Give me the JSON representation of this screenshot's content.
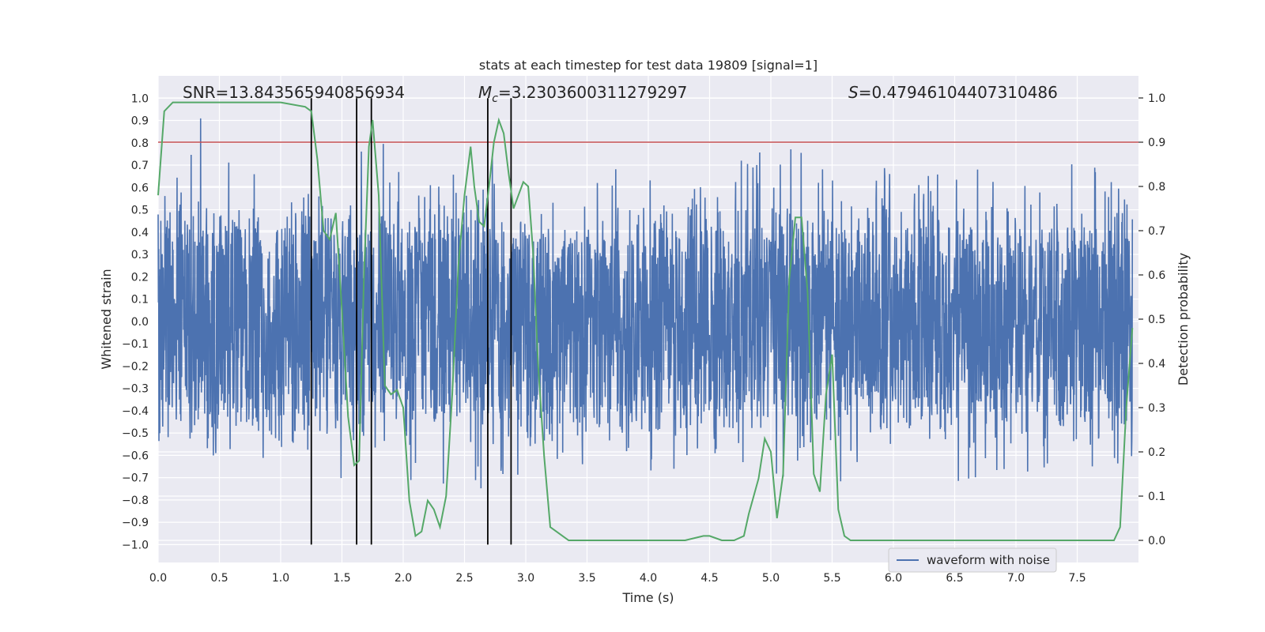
{
  "chart_data": {
    "type": "line",
    "title": "stats at each timestep for test data 19809 [signal=1]",
    "xlabel": "Time (s)",
    "ylabel": "Whitened strain",
    "y2label": "Detection probability",
    "xlim": [
      0.0,
      8.0
    ],
    "ylim": [
      -1.08,
      1.1
    ],
    "y2lim": [
      -0.05,
      1.05
    ],
    "xticks": [
      0.0,
      0.5,
      1.0,
      1.5,
      2.0,
      2.5,
      3.0,
      3.5,
      4.0,
      4.5,
      5.0,
      5.5,
      6.0,
      6.5,
      7.0,
      7.5
    ],
    "xtick_labels": [
      "0.0",
      "0.5",
      "1.0",
      "1.5",
      "2.0",
      "2.5",
      "3.0",
      "3.5",
      "4.0",
      "4.5",
      "5.0",
      "5.5",
      "6.0",
      "6.5",
      "7.0",
      "7.5"
    ],
    "yticks": [
      1.0,
      0.9,
      0.8,
      0.7,
      0.6,
      0.5,
      0.4,
      0.3,
      0.2,
      0.1,
      0.0,
      -0.1,
      -0.2,
      -0.3,
      -0.4,
      -0.5,
      -0.6,
      -0.7,
      -0.8,
      -0.9,
      -1.0
    ],
    "ytick_labels": [
      "1.0",
      "0.9",
      "0.8",
      "0.7",
      "0.6",
      "0.5",
      "0.4",
      "0.3",
      "0.2",
      "0.1",
      "0.0",
      "−0.1",
      "−0.2",
      "−0.3",
      "−0.4",
      "−0.5",
      "−0.6",
      "−0.7",
      "−0.8",
      "−0.9",
      "−1.0"
    ],
    "y2ticks": [
      1.0,
      0.9,
      0.8,
      0.7,
      0.6,
      0.5,
      0.4,
      0.3,
      0.2,
      0.1,
      0.0
    ],
    "y2tick_labels": [
      "1.0",
      "0.9",
      "0.8",
      "0.7",
      "0.6",
      "0.5",
      "0.4",
      "0.3",
      "0.2",
      "0.1",
      "0.0"
    ],
    "grid": true,
    "legend": {
      "placement": "lower-right",
      "entries": [
        "waveform with noise"
      ]
    },
    "annotations": {
      "snr": "SNR=13.843565940856934",
      "mc_symbol": "M",
      "mc_sub": "c",
      "mc_value": "=3.2303600311279297",
      "s_symbol": "S",
      "s_value": "=0.47946104407310486"
    },
    "threshold_y2": 0.9,
    "vlines_x": [
      1.25,
      1.62,
      1.74,
      2.69,
      2.88
    ],
    "waveform_envelope": {
      "description_free": true,
      "x": [
        0.0,
        0.25,
        0.5,
        0.75,
        1.0,
        1.25,
        1.5,
        1.75,
        2.0,
        2.25,
        2.5,
        2.75,
        3.0,
        3.25,
        3.5,
        3.75,
        4.0,
        4.25,
        4.5,
        4.75,
        5.0,
        5.25,
        5.5,
        5.75,
        6.0,
        6.25,
        6.5,
        6.75,
        7.0,
        7.25,
        7.5,
        7.75,
        7.95
      ],
      "max": [
        0.55,
        0.87,
        1.0,
        0.78,
        0.72,
        0.62,
        0.48,
        0.98,
        0.65,
        0.62,
        0.72,
        0.8,
        0.72,
        0.55,
        0.62,
        0.7,
        0.78,
        0.66,
        0.7,
        0.72,
        0.82,
        0.78,
        0.75,
        0.66,
        0.7,
        0.72,
        0.74,
        0.68,
        0.7,
        0.64,
        0.78,
        0.66,
        0.6
      ],
      "min": [
        -0.55,
        -0.6,
        -0.62,
        -0.65,
        -0.6,
        -0.78,
        -0.72,
        -0.7,
        -0.75,
        -0.68,
        -0.86,
        -0.68,
        -0.72,
        -0.62,
        -0.65,
        -0.7,
        -0.68,
        -0.66,
        -0.6,
        -0.82,
        -0.78,
        -0.62,
        -0.85,
        -0.7,
        -0.66,
        -0.72,
        -0.88,
        -0.7,
        -0.74,
        -0.9,
        -0.66,
        -0.7,
        -0.62
      ]
    },
    "series": [
      {
        "name": "waveform with noise",
        "color": "#4c72b0",
        "axis": "left"
      },
      {
        "color": "#55a868",
        "axis": "right",
        "x": [
          0.0,
          0.05,
          0.12,
          0.2,
          0.5,
          0.8,
          1.0,
          1.2,
          1.25,
          1.3,
          1.35,
          1.4,
          1.45,
          1.5,
          1.55,
          1.6,
          1.64,
          1.68,
          1.72,
          1.75,
          1.8,
          1.85,
          1.9,
          1.95,
          2.0,
          2.05,
          2.1,
          2.15,
          2.2,
          2.25,
          2.3,
          2.35,
          2.4,
          2.45,
          2.5,
          2.55,
          2.58,
          2.62,
          2.66,
          2.7,
          2.74,
          2.78,
          2.82,
          2.86,
          2.9,
          2.94,
          2.98,
          3.02,
          3.06,
          3.1,
          3.15,
          3.2,
          3.25,
          3.3,
          3.35,
          3.4,
          3.5,
          3.7,
          4.0,
          4.3,
          4.45,
          4.5,
          4.6,
          4.7,
          4.78,
          4.82,
          4.86,
          4.9,
          4.95,
          5.0,
          5.05,
          5.1,
          5.15,
          5.2,
          5.25,
          5.3,
          5.35,
          5.4,
          5.45,
          5.5,
          5.55,
          5.6,
          5.65,
          5.7,
          5.8,
          6.0,
          6.2,
          6.4,
          6.6,
          6.8,
          7.0,
          7.2,
          7.4,
          7.6,
          7.7,
          7.75,
          7.8,
          7.85,
          7.9,
          7.95
        ],
        "values": [
          0.78,
          0.97,
          0.99,
          0.99,
          0.99,
          0.99,
          0.99,
          0.98,
          0.97,
          0.86,
          0.7,
          0.68,
          0.74,
          0.52,
          0.28,
          0.17,
          0.18,
          0.6,
          0.89,
          0.95,
          0.78,
          0.35,
          0.33,
          0.34,
          0.3,
          0.09,
          0.01,
          0.02,
          0.09,
          0.07,
          0.03,
          0.1,
          0.33,
          0.62,
          0.78,
          0.89,
          0.8,
          0.72,
          0.71,
          0.8,
          0.9,
          0.95,
          0.92,
          0.83,
          0.75,
          0.78,
          0.81,
          0.8,
          0.65,
          0.4,
          0.19,
          0.03,
          0.02,
          0.01,
          0.0,
          0.0,
          0.0,
          0.0,
          0.0,
          0.0,
          0.01,
          0.01,
          0.0,
          0.0,
          0.01,
          0.06,
          0.1,
          0.14,
          0.23,
          0.2,
          0.05,
          0.15,
          0.59,
          0.73,
          0.73,
          0.56,
          0.15,
          0.11,
          0.33,
          0.42,
          0.07,
          0.01,
          0.0,
          0.0,
          0.0,
          0.0,
          0.0,
          0.0,
          0.0,
          0.0,
          0.0,
          0.0,
          0.0,
          0.0,
          0.0,
          0.0,
          0.0,
          0.03,
          0.3,
          0.48
        ]
      }
    ],
    "colors": {
      "plot_bg": "#eaeaf2",
      "grid": "#ffffff",
      "waveform": "#4c72b0",
      "probability": "#55a868",
      "threshold": "#c44e52",
      "vlines": "#000000"
    }
  }
}
